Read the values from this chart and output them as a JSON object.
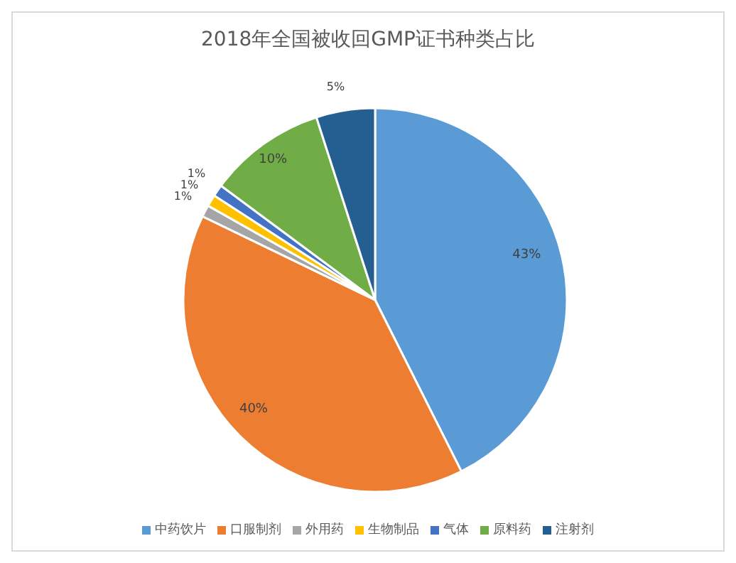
{
  "chart_data": {
    "type": "pie",
    "title": "2018年全国被收回GMP证书种类占比",
    "categories": [
      "中药饮片",
      "口服制剂",
      "外用药",
      "生物制品",
      "气体",
      "原料药",
      "注射剂"
    ],
    "values": [
      43,
      40,
      1,
      1,
      1,
      10,
      5
    ],
    "value_labels": [
      "43%",
      "40%",
      "1%",
      "1%",
      "1%",
      "10%",
      "5%"
    ],
    "colors": [
      "#5b9bd5",
      "#ed7d31",
      "#a5a5a5",
      "#ffc000",
      "#4472c4",
      "#70ad47",
      "#255e91"
    ],
    "legend": "bottom"
  }
}
